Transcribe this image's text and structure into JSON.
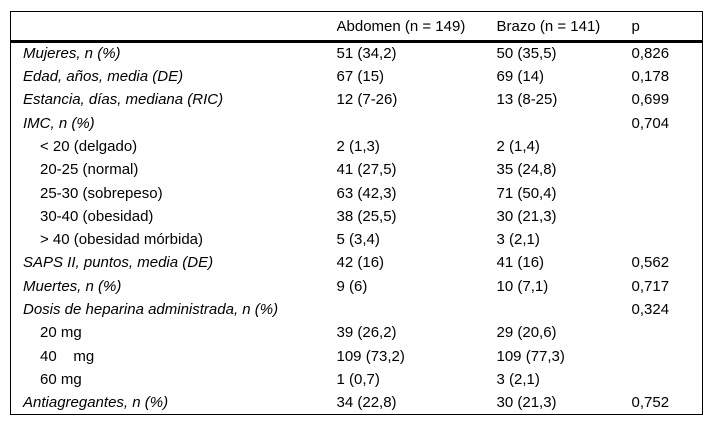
{
  "table": {
    "header": {
      "label": "",
      "abdomen": "Abdomen (n = 149)",
      "brazo": "Brazo (n = 141)",
      "p": "p"
    },
    "rows": [
      {
        "label": "Mujeres, n (%)",
        "abdomen": "51 (34,2)",
        "brazo": "50 (35,5)",
        "p": "0,826",
        "indent": false
      },
      {
        "label": "Edad, años, media (DE)",
        "abdomen": "67 (15)",
        "brazo": "69 (14)",
        "p": "0,178",
        "indent": false
      },
      {
        "label": "Estancia, días, mediana (RIC)",
        "abdomen": "12 (7-26)",
        "brazo": "13 (8-25)",
        "p": "0,699",
        "indent": false
      },
      {
        "label": "IMC, n (%)",
        "abdomen": "",
        "brazo": "",
        "p": "0,704",
        "indent": false
      },
      {
        "label": "< 20 (delgado)",
        "abdomen": "2 (1,3)",
        "brazo": "2 (1,4)",
        "p": "",
        "indent": true
      },
      {
        "label": "20-25 (normal)",
        "abdomen": "41 (27,5)",
        "brazo": "35 (24,8)",
        "p": "",
        "indent": true
      },
      {
        "label": "25-30 (sobrepeso)",
        "abdomen": "63 (42,3)",
        "brazo": "71 (50,4)",
        "p": "",
        "indent": true
      },
      {
        "label": "30-40 (obesidad)",
        "abdomen": "38 (25,5)",
        "brazo": "30 (21,3)",
        "p": "",
        "indent": true
      },
      {
        "label": "> 40 (obesidad mórbida)",
        "abdomen": "5 (3,4)",
        "brazo": "3 (2,1)",
        "p": "",
        "indent": true
      },
      {
        "label": "SAPS II, puntos, media (DE)",
        "abdomen": "42 (16)",
        "brazo": "41 (16)",
        "p": "0,562",
        "indent": false
      },
      {
        "label": "Muertes, n (%)",
        "abdomen": "9 (6)",
        "brazo": "10 (7,1)",
        "p": "0,717",
        "indent": false
      },
      {
        "label": "Dosis de heparina administrada, n (%)",
        "abdomen": "",
        "brazo": "",
        "p": "0,324",
        "indent": false
      },
      {
        "label": "20 mg",
        "abdomen": "39 (26,2)",
        "brazo": "29 (20,6)",
        "p": "",
        "indent": true
      },
      {
        "label": "40    mg",
        "abdomen": "109 (73,2)",
        "brazo": "109 (77,3)",
        "p": "",
        "indent": true
      },
      {
        "label": "60 mg",
        "abdomen": "1 (0,7)",
        "brazo": "3 (2,1)",
        "p": "",
        "indent": true
      },
      {
        "label": "Antiagregantes, n (%)",
        "abdomen": "34 (22,8)",
        "brazo": "30 (21,3)",
        "p": "0,752",
        "indent": false
      }
    ]
  },
  "colors": {
    "background": "#ffffff",
    "text": "#000000",
    "border": "#000000"
  }
}
